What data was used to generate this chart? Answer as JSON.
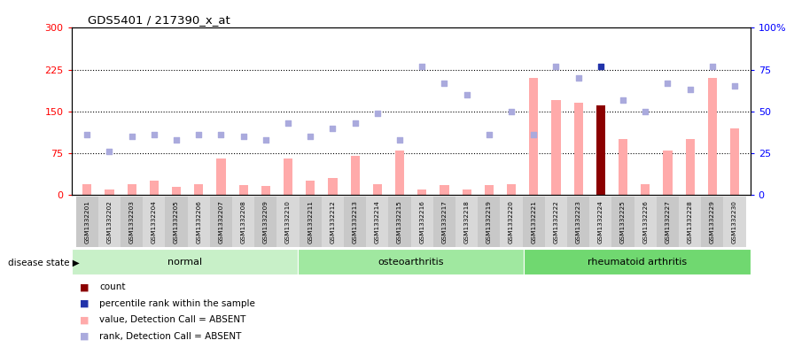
{
  "title": "GDS5401 / 217390_x_at",
  "samples": [
    "GSM1332201",
    "GSM1332202",
    "GSM1332203",
    "GSM1332204",
    "GSM1332205",
    "GSM1332206",
    "GSM1332207",
    "GSM1332208",
    "GSM1332209",
    "GSM1332210",
    "GSM1332211",
    "GSM1332212",
    "GSM1332213",
    "GSM1332214",
    "GSM1332215",
    "GSM1332216",
    "GSM1332217",
    "GSM1332218",
    "GSM1332219",
    "GSM1332220",
    "GSM1332221",
    "GSM1332222",
    "GSM1332223",
    "GSM1332224",
    "GSM1332225",
    "GSM1332226",
    "GSM1332227",
    "GSM1332228",
    "GSM1332229",
    "GSM1332230"
  ],
  "bar_values": [
    20,
    10,
    20,
    25,
    14,
    20,
    65,
    18,
    16,
    65,
    26,
    30,
    70,
    20,
    80,
    10,
    18,
    10,
    18,
    20,
    210,
    170,
    165,
    160,
    100,
    20,
    80,
    100,
    210,
    120
  ],
  "bar_colors": [
    "#ffaaaa",
    "#ffaaaa",
    "#ffaaaa",
    "#ffaaaa",
    "#ffaaaa",
    "#ffaaaa",
    "#ffaaaa",
    "#ffaaaa",
    "#ffaaaa",
    "#ffaaaa",
    "#ffaaaa",
    "#ffaaaa",
    "#ffaaaa",
    "#ffaaaa",
    "#ffaaaa",
    "#ffaaaa",
    "#ffaaaa",
    "#ffaaaa",
    "#ffaaaa",
    "#ffaaaa",
    "#ffaaaa",
    "#ffaaaa",
    "#ffaaaa",
    "#8b0000",
    "#ffaaaa",
    "#ffaaaa",
    "#ffaaaa",
    "#ffaaaa",
    "#ffaaaa",
    "#ffaaaa"
  ],
  "rank_values_pct": [
    36,
    26,
    35,
    36,
    33,
    36,
    36,
    35,
    33,
    43,
    35,
    40,
    43,
    49,
    33,
    77,
    67,
    60,
    36,
    50,
    36,
    77,
    70,
    77,
    57,
    50,
    67,
    63,
    77,
    65
  ],
  "rank_special_idx": [
    23
  ],
  "ylim_left": [
    0,
    300
  ],
  "ylim_right": [
    0,
    100
  ],
  "yticks_left": [
    0,
    75,
    150,
    225,
    300
  ],
  "yticks_right": [
    0,
    25,
    50,
    75,
    100
  ],
  "ytick_labels_left": [
    "0",
    "75",
    "150",
    "225",
    "300"
  ],
  "ytick_labels_right": [
    "0",
    "25",
    "50",
    "75",
    "100%"
  ],
  "hlines": [
    75,
    150,
    225
  ],
  "groups": [
    {
      "label": "normal",
      "start": 0,
      "end": 9,
      "color": "#c8f0c8"
    },
    {
      "label": "osteoarthritis",
      "start": 10,
      "end": 19,
      "color": "#a0e8a0"
    },
    {
      "label": "rheumatoid arthritis",
      "start": 20,
      "end": 29,
      "color": "#70d870"
    }
  ],
  "disease_state_label": "disease state",
  "bar_width": 0.4,
  "rank_color": "#aaaadd",
  "rank_special_color": "#2233aa",
  "plot_bg": "white"
}
